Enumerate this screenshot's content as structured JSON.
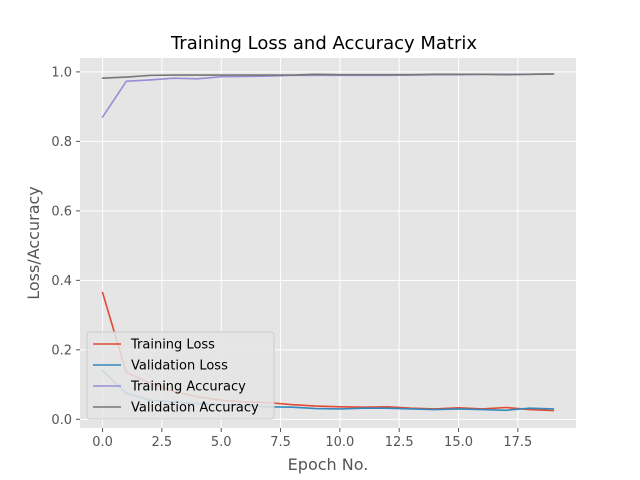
{
  "chart_data": {
    "type": "line",
    "title": "Training Loss and Accuracy Matrix",
    "xlabel": "Epoch No.",
    "ylabel": "Loss/Accuracy",
    "xlim": [
      -0.95,
      19.95
    ],
    "ylim": [
      -0.025,
      1.04
    ],
    "xticks": [
      0.0,
      2.5,
      5.0,
      7.5,
      10.0,
      12.5,
      15.0,
      17.5
    ],
    "xtick_labels": [
      "0.0",
      "2.5",
      "5.0",
      "7.5",
      "10.0",
      "12.5",
      "15.0",
      "17.5"
    ],
    "yticks": [
      0.0,
      0.2,
      0.4,
      0.6,
      0.8,
      1.0
    ],
    "ytick_labels": [
      "0.0",
      "0.2",
      "0.4",
      "0.6",
      "0.8",
      "1.0"
    ],
    "grid": true,
    "legend_position": "lower-left",
    "x": [
      0,
      1,
      2,
      3,
      4,
      5,
      6,
      7,
      8,
      9,
      10,
      11,
      12,
      13,
      14,
      15,
      16,
      17,
      18,
      19
    ],
    "series": [
      {
        "name": "Training Loss",
        "color": "#E24A33",
        "values": [
          0.365,
          0.135,
          0.105,
          0.08,
          0.065,
          0.055,
          0.05,
          0.048,
          0.042,
          0.038,
          0.036,
          0.035,
          0.036,
          0.032,
          0.03,
          0.033,
          0.03,
          0.034,
          0.028,
          0.025
        ]
      },
      {
        "name": "Validation Loss",
        "color": "#348ABD",
        "values": [
          0.14,
          0.075,
          0.055,
          0.05,
          0.045,
          0.042,
          0.04,
          0.036,
          0.035,
          0.031,
          0.03,
          0.032,
          0.032,
          0.03,
          0.028,
          0.03,
          0.028,
          0.026,
          0.032,
          0.03
        ]
      },
      {
        "name": "Training Accuracy",
        "color": "#988ED5",
        "values": [
          0.87,
          0.973,
          0.977,
          0.982,
          0.98,
          0.986,
          0.987,
          0.988,
          0.99,
          0.99,
          0.99,
          0.99,
          0.99,
          0.991,
          0.992,
          0.992,
          0.993,
          0.993,
          0.993,
          0.994
        ]
      },
      {
        "name": "Validation Accuracy",
        "color": "#777777",
        "values": [
          0.982,
          0.985,
          0.99,
          0.991,
          0.991,
          0.991,
          0.991,
          0.991,
          0.991,
          0.993,
          0.992,
          0.992,
          0.992,
          0.992,
          0.993,
          0.993,
          0.993,
          0.992,
          0.993,
          0.994
        ]
      }
    ]
  }
}
